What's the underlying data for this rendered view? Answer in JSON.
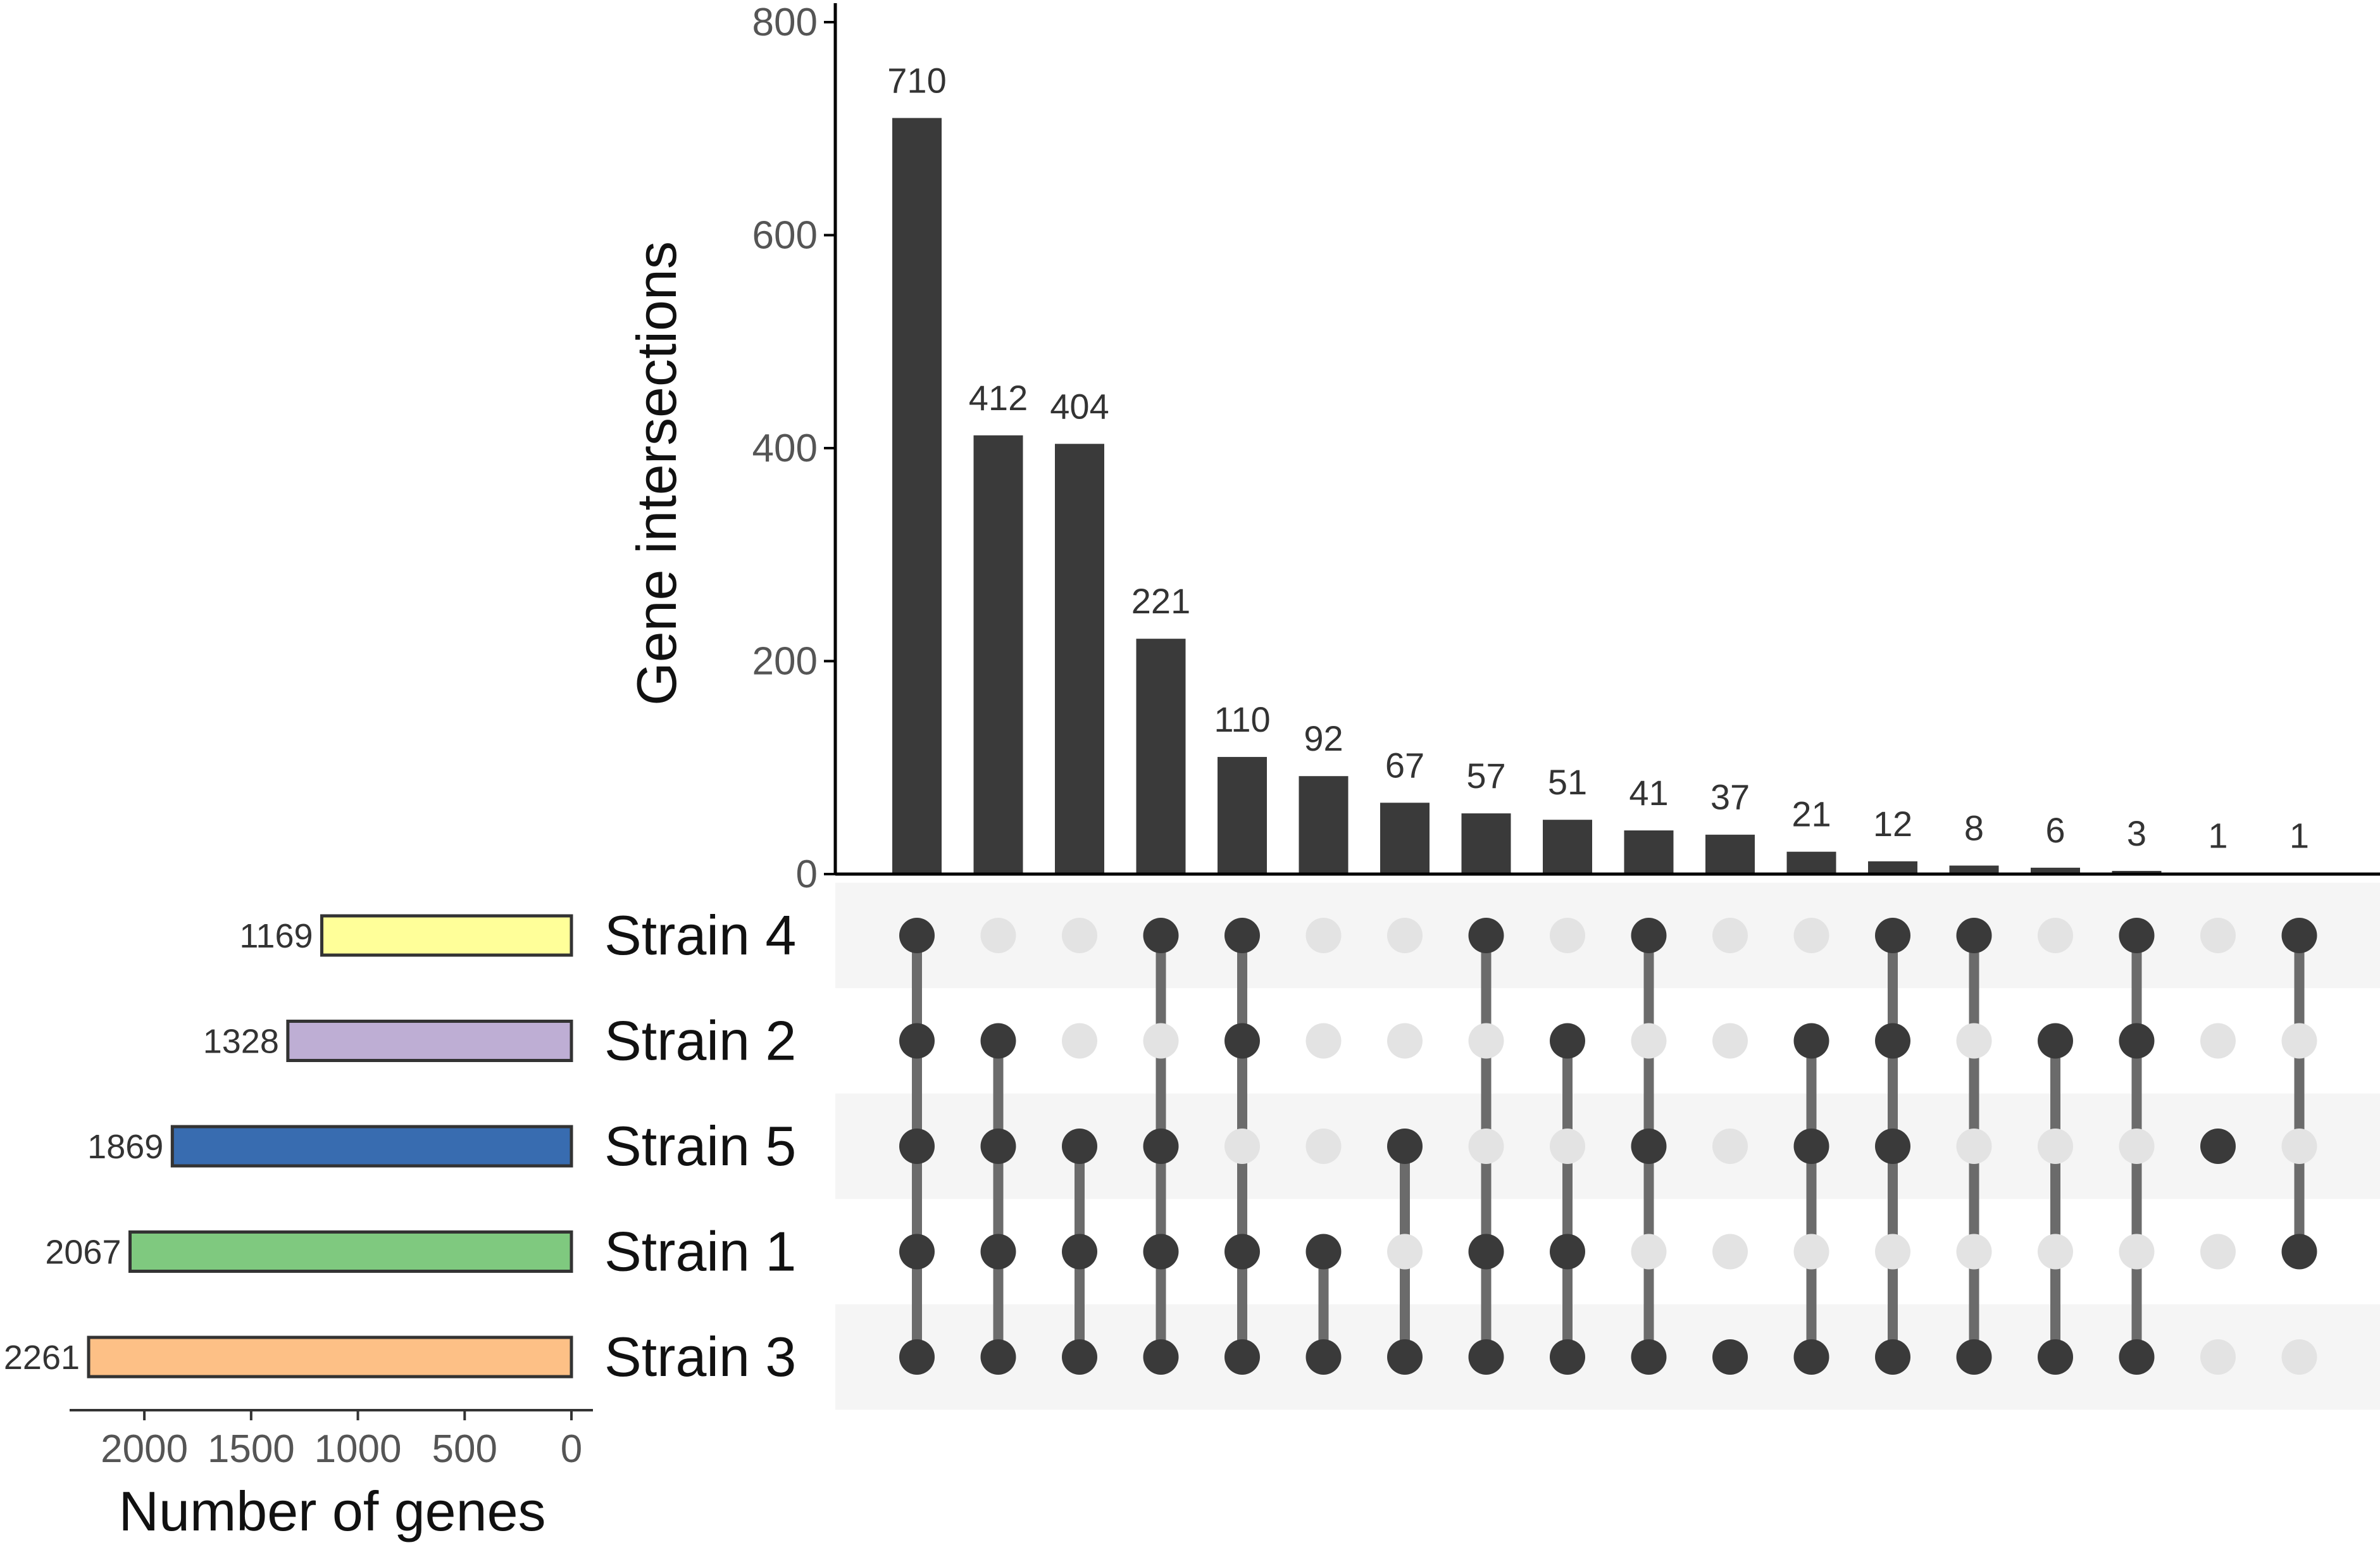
{
  "chart_data": {
    "type": "upset",
    "intersections": {
      "ylabel": "Gene intersections",
      "ylim": [
        0,
        800
      ],
      "yticks": [
        0,
        200,
        400,
        600,
        800
      ],
      "values": [
        710,
        412,
        404,
        221,
        110,
        92,
        67,
        57,
        51,
        41,
        37,
        21,
        12,
        8,
        6,
        3,
        1,
        1
      ],
      "labels": [
        "710",
        "412",
        "404",
        "221",
        "110",
        "92",
        "67",
        "57",
        "51",
        "41",
        "37",
        "21",
        "12",
        "8",
        "6",
        "3",
        "1",
        "1"
      ],
      "bar_color": "#3a3a3a"
    },
    "sets": [
      {
        "name": "Strain 4",
        "size": 1169,
        "size_label": "1169",
        "color": "#ffff99"
      },
      {
        "name": "Strain 2",
        "size": 1328,
        "size_label": "1328",
        "color": "#beaed4"
      },
      {
        "name": "Strain 5",
        "size": 1869,
        "size_label": "1869",
        "color": "#386cb0"
      },
      {
        "name": "Strain 1",
        "size": 2067,
        "size_label": "2067",
        "color": "#7fc97f"
      },
      {
        "name": "Strain 3",
        "size": 2261,
        "size_label": "2261",
        "color": "#fdc086"
      }
    ],
    "matrix": [
      [
        "Strain 4",
        "Strain 2",
        "Strain 5",
        "Strain 1",
        "Strain 3"
      ],
      [
        "Strain 2",
        "Strain 5",
        "Strain 1",
        "Strain 3"
      ],
      [
        "Strain 5",
        "Strain 1",
        "Strain 3"
      ],
      [
        "Strain 4",
        "Strain 5",
        "Strain 1",
        "Strain 3"
      ],
      [
        "Strain 4",
        "Strain 2",
        "Strain 1",
        "Strain 3"
      ],
      [
        "Strain 1",
        "Strain 3"
      ],
      [
        "Strain 5",
        "Strain 3"
      ],
      [
        "Strain 4",
        "Strain 1",
        "Strain 3"
      ],
      [
        "Strain 2",
        "Strain 1",
        "Strain 3"
      ],
      [
        "Strain 4",
        "Strain 5",
        "Strain 3"
      ],
      [
        "Strain 3"
      ],
      [
        "Strain 2",
        "Strain 5",
        "Strain 3"
      ],
      [
        "Strain 4",
        "Strain 2",
        "Strain 5",
        "Strain 3"
      ],
      [
        "Strain 4",
        "Strain 3"
      ],
      [
        "Strain 2",
        "Strain 3"
      ],
      [
        "Strain 4",
        "Strain 2",
        "Strain 3"
      ],
      [
        "Strain 5"
      ],
      [
        "Strain 4",
        "Strain 1"
      ]
    ],
    "set_size_axis": {
      "xlabel": "Number of genes",
      "ticks": [
        2000,
        1500,
        1000,
        500,
        0
      ],
      "tick_labels": [
        "2000",
        "1500",
        "1000",
        "500",
        "0"
      ],
      "xlim": [
        2350,
        0
      ]
    },
    "colors": {
      "dot_active": "#3a3a3a",
      "dot_inactive": "#e3e3e3",
      "line": "#6b6b6b",
      "stripe": "#f5f5f5"
    }
  }
}
